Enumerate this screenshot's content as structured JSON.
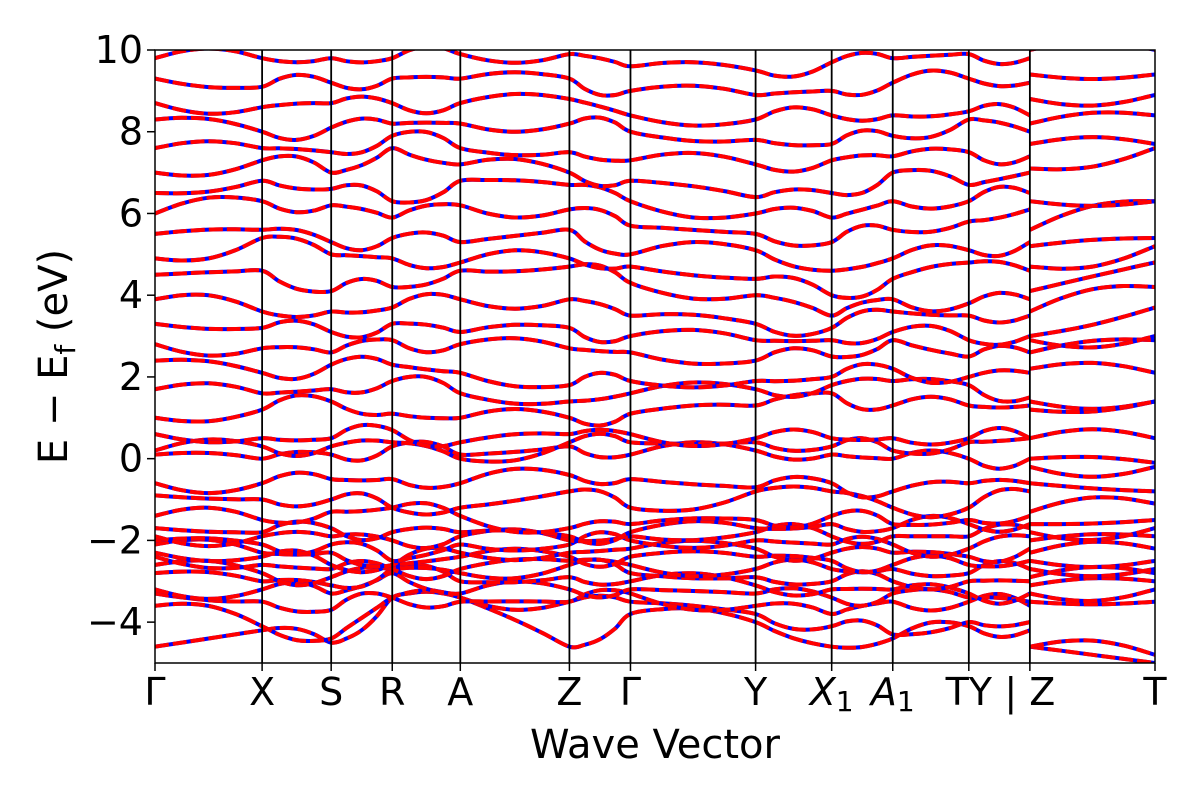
{
  "chart_data": {
    "type": "line",
    "title": "",
    "xlabel": "Wave Vector",
    "ylabel_parts": {
      "main": "E − E",
      "sub": "f",
      "unit": " (eV)"
    },
    "ylim": [
      -5,
      10
    ],
    "yticks": [
      -4,
      -2,
      0,
      2,
      4,
      6,
      8,
      10
    ],
    "ytick_labels": [
      "−4",
      "−2",
      "0",
      "2",
      "4",
      "6",
      "8",
      "10"
    ],
    "grid": false,
    "legend": "none",
    "path_segments": [
      {
        "from": "Γ",
        "to": "X",
        "length": 0.107
      },
      {
        "from": "X",
        "to": "S",
        "length": 0.069
      },
      {
        "from": "S",
        "to": "R",
        "length": 0.061
      },
      {
        "from": "R",
        "to": "A",
        "length": 0.068
      },
      {
        "from": "A",
        "to": "Z",
        "length": 0.109
      },
      {
        "from": "Z",
        "to": "Γ",
        "length": 0.061
      },
      {
        "from": "Γ",
        "to": "Y",
        "length": 0.125
      },
      {
        "from": "Y",
        "to": "X1",
        "length": 0.076
      },
      {
        "from": "X1",
        "to": "A1",
        "length": 0.061
      },
      {
        "from": "A1",
        "to": "T",
        "length": 0.076
      },
      {
        "from": "T",
        "to": "Y",
        "length": 0.061
      },
      {
        "from": "Z",
        "to": "T",
        "length": 0.125
      }
    ],
    "kpoint_labels": [
      {
        "text": "Γ",
        "sub": ""
      },
      {
        "text": "X",
        "sub": ""
      },
      {
        "text": "S",
        "sub": ""
      },
      {
        "text": "R",
        "sub": ""
      },
      {
        "text": "A",
        "sub": ""
      },
      {
        "text": "Z",
        "sub": ""
      },
      {
        "text": "Γ",
        "sub": ""
      },
      {
        "text": "Y",
        "sub": ""
      },
      {
        "text": "X",
        "sub": "1"
      },
      {
        "text": "A",
        "sub": "1"
      },
      {
        "text": "TY",
        "sub": ""
      },
      {
        "text": "| Z",
        "sub": ""
      },
      {
        "text": "T",
        "sub": ""
      }
    ],
    "series": [
      {
        "color": "#0000ff",
        "style": "solid"
      },
      {
        "color": "#ff0000",
        "style": "dashed"
      }
    ],
    "band_energies_at_kpoints": [
      [
        -4.6,
        -4.2,
        -4.5,
        -3.4,
        -3.4,
        -4.6,
        -3.8,
        -4.0,
        -4.6,
        -4.4,
        -4.1,
        -4.2,
        -4.6,
        -5.0
      ],
      [
        -3.6,
        -4.1,
        -4.4,
        -3.4,
        -3.4,
        -3.5,
        -3.5,
        -3.8,
        -4.1,
        -4.3,
        -4.0,
        -4.0,
        -4.6,
        -4.8
      ],
      [
        -3.3,
        -3.5,
        -3.7,
        -3.4,
        -3.5,
        -3.5,
        -3.3,
        -3.6,
        -3.8,
        -3.5,
        -3.5,
        -3.6,
        -3.5,
        -3.5
      ],
      [
        -3.2,
        -3.2,
        -3.3,
        -2.8,
        -3.3,
        -3.2,
        -3.2,
        -3.3,
        -3.4,
        -3.3,
        -3.4,
        -3.5,
        -3.3,
        -3.2
      ],
      [
        -2.8,
        -3.0,
        -3.1,
        -2.7,
        -3.0,
        -2.9,
        -3.0,
        -3.1,
        -3.2,
        -3.2,
        -3.3,
        -3.3,
        -3.1,
        -3.0
      ],
      [
        -2.6,
        -2.8,
        -2.9,
        -2.7,
        -2.8,
        -2.6,
        -2.8,
        -2.9,
        -3.0,
        -3.0,
        -3.0,
        -3.0,
        -2.9,
        -2.8
      ],
      [
        -2.4,
        -2.6,
        -2.7,
        -2.7,
        -2.7,
        -2.5,
        -2.6,
        -2.7,
        -2.7,
        -2.7,
        -2.8,
        -2.7,
        -2.7,
        -2.7
      ],
      [
        -2.3,
        -2.4,
        -2.6,
        -2.6,
        -2.4,
        -2.4,
        -2.4,
        -2.4,
        -2.5,
        -2.6,
        -2.6,
        -2.5,
        -2.5,
        -2.5
      ],
      [
        -2.1,
        -2.3,
        -2.3,
        -2.6,
        -2.3,
        -2.3,
        -2.2,
        -2.2,
        -2.3,
        -2.3,
        -2.4,
        -2.2,
        -2.3,
        -2.2
      ],
      [
        -2.0,
        -2.1,
        -2.1,
        -2.5,
        -2.1,
        -2.1,
        -2.0,
        -2.0,
        -2.1,
        -2.1,
        -2.2,
        -1.9,
        -2.0,
        -1.9
      ],
      [
        -1.9,
        -1.9,
        -1.9,
        -2.0,
        -1.9,
        -2.0,
        -1.9,
        -1.8,
        -1.9,
        -1.9,
        -1.9,
        -1.7,
        -1.8,
        -1.7
      ],
      [
        -1.7,
        -1.8,
        -1.7,
        -1.8,
        -1.8,
        -1.9,
        -1.8,
        -1.7,
        -1.6,
        -1.7,
        -1.6,
        -1.6,
        -1.6,
        -1.5
      ],
      [
        -1.4,
        -1.5,
        -1.3,
        -1.2,
        -1.4,
        -1.7,
        -1.6,
        -1.5,
        -1.4,
        -1.6,
        -1.5,
        -1.4,
        -1.3,
        -1.1
      ],
      [
        -0.9,
        -1.0,
        -1.0,
        -1.2,
        -1.2,
        -0.8,
        -1.2,
        -0.8,
        -0.8,
        -1.2,
        -1.2,
        -0.8,
        -0.6,
        -0.8
      ],
      [
        -0.6,
        -0.6,
        -0.5,
        -0.5,
        -0.6,
        -0.4,
        -0.5,
        -0.7,
        -0.6,
        -0.8,
        -0.6,
        -0.6,
        -0.2,
        -0.2
      ],
      [
        0.1,
        0.0,
        0.1,
        0.3,
        0.1,
        0.3,
        0.1,
        0.2,
        0.1,
        0.0,
        0.0,
        0.0,
        0.0,
        -0.1
      ],
      [
        0.2,
        0.3,
        0.3,
        0.4,
        0.0,
        0.4,
        0.4,
        0.4,
        0.3,
        0.2,
        0.4,
        0.5,
        0.5,
        0.5
      ],
      [
        0.6,
        0.5,
        0.5,
        0.7,
        0.4,
        0.6,
        0.6,
        0.5,
        0.5,
        0.5,
        0.5,
        0.5,
        1.2,
        1.4
      ],
      [
        1.0,
        1.2,
        1.4,
        1.1,
        1.0,
        1.0,
        1.1,
        1.3,
        1.6,
        1.3,
        1.3,
        1.3,
        1.4,
        1.4
      ],
      [
        1.7,
        1.6,
        1.7,
        1.9,
        1.6,
        1.4,
        1.6,
        1.7,
        1.8,
        1.9,
        1.8,
        1.5,
        2.2,
        2.1
      ],
      [
        2.4,
        2.1,
        2.3,
        2.3,
        2.1,
        1.8,
        1.9,
        1.9,
        2.0,
        2.2,
        2.0,
        2.1,
        2.6,
        2.9
      ],
      [
        2.8,
        2.7,
        2.6,
        2.9,
        2.8,
        2.7,
        2.6,
        2.4,
        2.5,
        2.9,
        2.5,
        2.6,
        2.9,
        3.0
      ],
      [
        3.3,
        3.2,
        3.1,
        3.3,
        3.1,
        3.2,
        3.0,
        2.9,
        2.9,
        3.1,
        2.9,
        3.0,
        3.0,
        3.7
      ],
      [
        3.9,
        3.6,
        3.6,
        3.7,
        3.9,
        3.9,
        3.5,
        3.3,
        3.2,
        3.6,
        3.5,
        3.5,
        3.6,
        4.2
      ],
      [
        4.5,
        4.6,
        4.1,
        4.2,
        4.6,
        4.7,
        4.3,
        4.0,
        3.5,
        3.9,
        3.8,
        3.9,
        4.1,
        4.8
      ],
      [
        4.9,
        5.4,
        5.0,
        4.9,
        4.8,
        4.9,
        4.7,
        4.4,
        4.0,
        4.4,
        4.8,
        4.6,
        4.7,
        5.2
      ],
      [
        5.5,
        5.6,
        5.3,
        5.4,
        5.3,
        5.6,
        5.0,
        5.1,
        4.6,
        4.9,
        5.1,
        5.3,
        5.2,
        5.4
      ],
      [
        6.0,
        6.3,
        6.2,
        5.9,
        6.2,
        6.1,
        5.7,
        5.5,
        5.3,
        5.6,
        5.8,
        6.1,
        5.6,
        6.3
      ],
      [
        6.5,
        6.8,
        6.6,
        6.3,
        6.8,
        6.7,
        6.3,
        6.0,
        5.9,
        6.3,
        6.3,
        6.5,
        6.3,
        6.3
      ],
      [
        7.0,
        7.3,
        7.0,
        7.6,
        7.2,
        7.0,
        6.8,
        6.4,
        6.5,
        7.0,
        6.7,
        7.0,
        7.1,
        7.6
      ],
      [
        7.6,
        7.6,
        7.5,
        7.9,
        7.6,
        7.5,
        7.3,
        7.2,
        7.3,
        7.4,
        7.5,
        7.4,
        7.7,
        7.7
      ],
      [
        8.3,
        8.0,
        8.1,
        8.2,
        8.2,
        8.2,
        8.0,
        7.8,
        7.7,
        7.9,
        8.3,
        8.0,
        8.2,
        8.4
      ],
      [
        8.7,
        8.6,
        8.7,
        8.7,
        8.7,
        8.8,
        8.4,
        8.3,
        8.4,
        8.4,
        8.5,
        8.4,
        8.8,
        8.9
      ],
      [
        9.3,
        9.1,
        9.2,
        9.3,
        9.3,
        9.3,
        9.0,
        8.9,
        9.0,
        9.2,
        9.3,
        9.2,
        9.4,
        9.4
      ],
      [
        9.8,
        9.8,
        9.8,
        9.8,
        9.9,
        9.9,
        9.6,
        9.5,
        9.7,
        9.8,
        9.9,
        9.8,
        10.0,
        10.0
      ]
    ]
  }
}
